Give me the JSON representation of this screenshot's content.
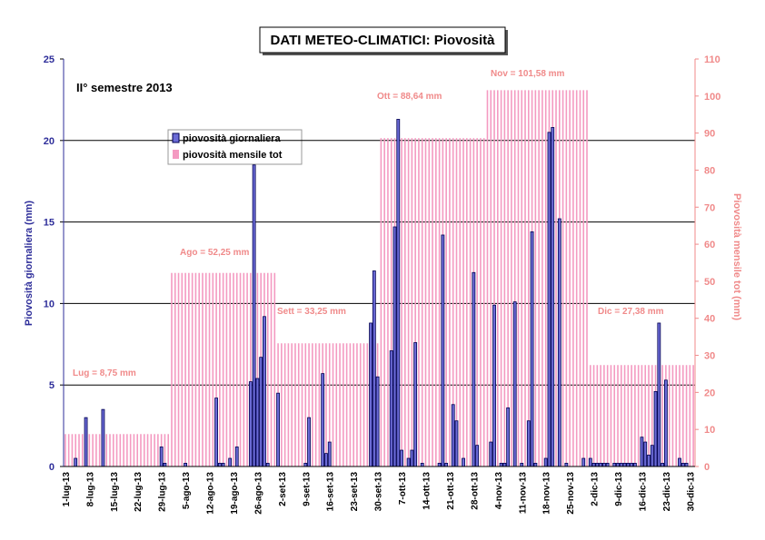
{
  "chart_data": {
    "type": "bar",
    "title": "DATI METEO-CLIMATICI: Piovosità",
    "subtitle": "II° semestre 2013",
    "y_label": "Piovosità giornaliera (mm)",
    "y2_label": "Piovosità mensile tot  (mm)",
    "annotations": [
      "Lug = 8,75 mm",
      "Ago = 52,25 mm",
      "Sett = 33,25 mm",
      "Ott = 88,64 mm",
      "Nov = 101,58 mm",
      "Dic = 27,38 mm"
    ],
    "ylim": [
      0,
      25
    ],
    "yticks": [
      0,
      5,
      10,
      15,
      20,
      25
    ],
    "y2lim": [
      0,
      110
    ],
    "y2ticks": [
      0,
      10,
      20,
      30,
      40,
      50,
      60,
      70,
      80,
      90,
      100,
      110
    ],
    "grid": true,
    "categories": [
      "1-lug-13",
      null,
      null,
      null,
      null,
      null,
      null,
      "8-lug-13",
      null,
      null,
      null,
      null,
      null,
      null,
      "15-lug-13",
      null,
      null,
      null,
      null,
      null,
      null,
      "22-lug-13",
      null,
      null,
      null,
      null,
      null,
      null,
      "29-lug-13",
      null,
      null,
      null,
      null,
      null,
      null,
      "5-ago-13",
      null,
      null,
      null,
      null,
      null,
      null,
      "12-ago-13",
      null,
      null,
      null,
      null,
      null,
      null,
      "19-ago-13",
      null,
      null,
      null,
      null,
      null,
      null,
      "26-ago-13",
      null,
      null,
      null,
      null,
      null,
      null,
      "2-set-13",
      null,
      null,
      null,
      null,
      null,
      null,
      "9-set-13",
      null,
      null,
      null,
      null,
      null,
      null,
      "16-set-13",
      null,
      null,
      null,
      null,
      null,
      null,
      "23-set-13",
      null,
      null,
      null,
      null,
      null,
      null,
      "30-set-13",
      null,
      null,
      null,
      null,
      null,
      null,
      "7-ott-13",
      null,
      null,
      null,
      null,
      null,
      null,
      "14-ott-13",
      null,
      null,
      null,
      null,
      null,
      null,
      "21-ott-13",
      null,
      null,
      null,
      null,
      null,
      null,
      "28-ott-13",
      null,
      null,
      null,
      null,
      null,
      null,
      "4-nov-13",
      null,
      null,
      null,
      null,
      null,
      null,
      "11-nov-13",
      null,
      null,
      null,
      null,
      null,
      null,
      "18-nov-13",
      null,
      null,
      null,
      null,
      null,
      null,
      "25-nov-13",
      null,
      null,
      null,
      null,
      null,
      null,
      "2-dic-13",
      null,
      null,
      null,
      null,
      null,
      null,
      "9-dic-13",
      null,
      null,
      null,
      null,
      null,
      null,
      "16-dic-13",
      null,
      null,
      null,
      null,
      null,
      null,
      "23-dic-13",
      null,
      null,
      null,
      null,
      null,
      null,
      "30-dic-13",
      null
    ],
    "series": [
      {
        "name": "piovosità mensile tot",
        "color": "#f49ac1",
        "axis": "y2",
        "values": [
          8.75,
          8.75,
          8.75,
          8.75,
          8.75,
          8.75,
          8.75,
          8.75,
          8.75,
          8.75,
          8.75,
          8.75,
          8.75,
          8.75,
          8.75,
          8.75,
          8.75,
          8.75,
          8.75,
          8.75,
          8.75,
          8.75,
          8.75,
          8.75,
          8.75,
          8.75,
          8.75,
          8.75,
          8.75,
          8.75,
          8.75,
          52.25,
          52.25,
          52.25,
          52.25,
          52.25,
          52.25,
          52.25,
          52.25,
          52.25,
          52.25,
          52.25,
          52.25,
          52.25,
          52.25,
          52.25,
          52.25,
          52.25,
          52.25,
          52.25,
          52.25,
          52.25,
          52.25,
          52.25,
          52.25,
          52.25,
          52.25,
          52.25,
          52.25,
          52.25,
          52.25,
          52.25,
          33.25,
          33.25,
          33.25,
          33.25,
          33.25,
          33.25,
          33.25,
          33.25,
          33.25,
          33.25,
          33.25,
          33.25,
          33.25,
          33.25,
          33.25,
          33.25,
          33.25,
          33.25,
          33.25,
          33.25,
          33.25,
          33.25,
          33.25,
          33.25,
          33.25,
          33.25,
          33.25,
          33.25,
          33.25,
          33.25,
          88.64,
          88.64,
          88.64,
          88.64,
          88.64,
          88.64,
          88.64,
          88.64,
          88.64,
          88.64,
          88.64,
          88.64,
          88.64,
          88.64,
          88.64,
          88.64,
          88.64,
          88.64,
          88.64,
          88.64,
          88.64,
          88.64,
          88.64,
          88.64,
          88.64,
          88.64,
          88.64,
          88.64,
          88.64,
          88.64,
          88.64,
          101.58,
          101.58,
          101.58,
          101.58,
          101.58,
          101.58,
          101.58,
          101.58,
          101.58,
          101.58,
          101.58,
          101.58,
          101.58,
          101.58,
          101.58,
          101.58,
          101.58,
          101.58,
          101.58,
          101.58,
          101.58,
          101.58,
          101.58,
          101.58,
          101.58,
          101.58,
          101.58,
          101.58,
          101.58,
          101.58,
          27.38,
          27.38,
          27.38,
          27.38,
          27.38,
          27.38,
          27.38,
          27.38,
          27.38,
          27.38,
          27.38,
          27.38,
          27.38,
          27.38,
          27.38,
          27.38,
          27.38,
          27.38,
          27.38,
          27.38,
          27.38,
          27.38,
          27.38,
          27.38,
          27.38,
          27.38,
          27.38,
          27.38,
          27.38,
          27.38,
          27.38
        ]
      },
      {
        "name": "piovosità giornaliera",
        "color": "#6b6bd6",
        "values": [
          0,
          0,
          0,
          0.5,
          0,
          0,
          3,
          0,
          0,
          0,
          0,
          3.5,
          0,
          0,
          0,
          0,
          0,
          0,
          0,
          0,
          0,
          0,
          0,
          0,
          0,
          0,
          0,
          0,
          1.2,
          0.2,
          0,
          0,
          0,
          0,
          0,
          0.2,
          0,
          0,
          0,
          0,
          0,
          0,
          0,
          0,
          4.2,
          0.2,
          0.2,
          0,
          0.5,
          0,
          1.2,
          0,
          0,
          0,
          5.2,
          18.5,
          5.4,
          6.7,
          9.2,
          0.2,
          0,
          0,
          4.5,
          0,
          0,
          0,
          0,
          0,
          0,
          0,
          0.2,
          3,
          0,
          0,
          0,
          5.7,
          0.8,
          1.5,
          0,
          0,
          0,
          0,
          0,
          0,
          0,
          0,
          0,
          0,
          0,
          8.8,
          12,
          5.5,
          0,
          0,
          0,
          7.1,
          14.7,
          21.3,
          1,
          0,
          0.5,
          1,
          7.6,
          0,
          0.2,
          0,
          0,
          0,
          0,
          0.2,
          14.2,
          0.2,
          0,
          3.8,
          2.8,
          0,
          0.5,
          0,
          0,
          11.9,
          1.3,
          0,
          0,
          0,
          1.5,
          9.9,
          0,
          0.2,
          0.2,
          3.6,
          0,
          10.1,
          0,
          0.2,
          0,
          2.8,
          14.4,
          0.2,
          0,
          0,
          0.5,
          20.5,
          20.8,
          0,
          15.2,
          0,
          0.2,
          0,
          0,
          0,
          0,
          0.5,
          0,
          0.5,
          0.2,
          0.2,
          0.2,
          0.2,
          0.2,
          0,
          0.2,
          0.2,
          0.2,
          0.2,
          0.2,
          0.2,
          0.2,
          0,
          1.8,
          1.5,
          0.7,
          1.3,
          4.6,
          8.8,
          0.2,
          5.3,
          0,
          0,
          0,
          0.5,
          0.2,
          0.2,
          0,
          0
        ]
      }
    ]
  }
}
